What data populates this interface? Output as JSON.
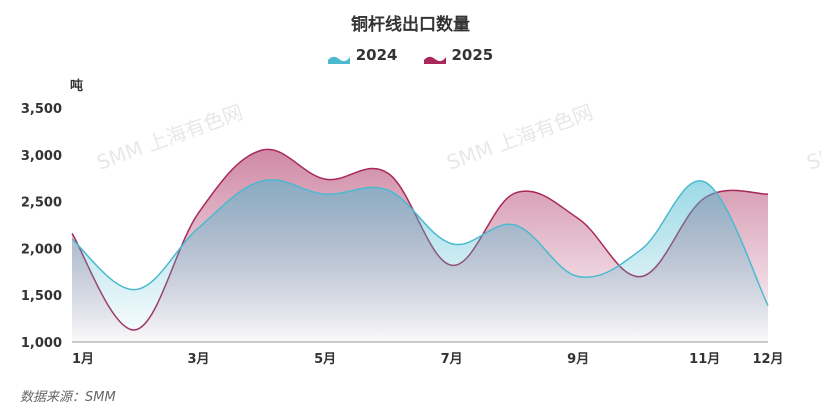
{
  "chart_data": {
    "type": "area",
    "title": "铜杆线出口数量",
    "ylabel": "吨",
    "xlabel": "",
    "x": [
      1,
      2,
      3,
      4,
      5,
      6,
      7,
      8,
      9,
      10,
      11,
      12
    ],
    "tick_labels": {
      "1": "1月",
      "3": "3月",
      "5": "5月",
      "7": "7月",
      "9": "9月",
      "11": "11月",
      "12": "12月"
    },
    "ylim": [
      1000,
      3500
    ],
    "yticks": [
      1000,
      1500,
      2000,
      2500,
      3000,
      3500
    ],
    "ytick_labels": [
      "1,000",
      "1,500",
      "2,000",
      "2,500",
      "3,000",
      "3,500"
    ],
    "grid": false,
    "legend_position": "top-center",
    "series": [
      {
        "name": "2024",
        "color": "#4bbad0",
        "values": [
          2100,
          1560,
          2220,
          2720,
          2580,
          2620,
          2050,
          2250,
          1700,
          1990,
          2710,
          1390
        ]
      },
      {
        "name": "2025",
        "color": "#a8285a",
        "values": [
          2160,
          1130,
          2380,
          3050,
          2740,
          2800,
          1820,
          2590,
          2320,
          1700,
          2540,
          2580
        ]
      }
    ],
    "watermark": "SMM 上海有色网"
  },
  "source": "数据来源：SMM"
}
